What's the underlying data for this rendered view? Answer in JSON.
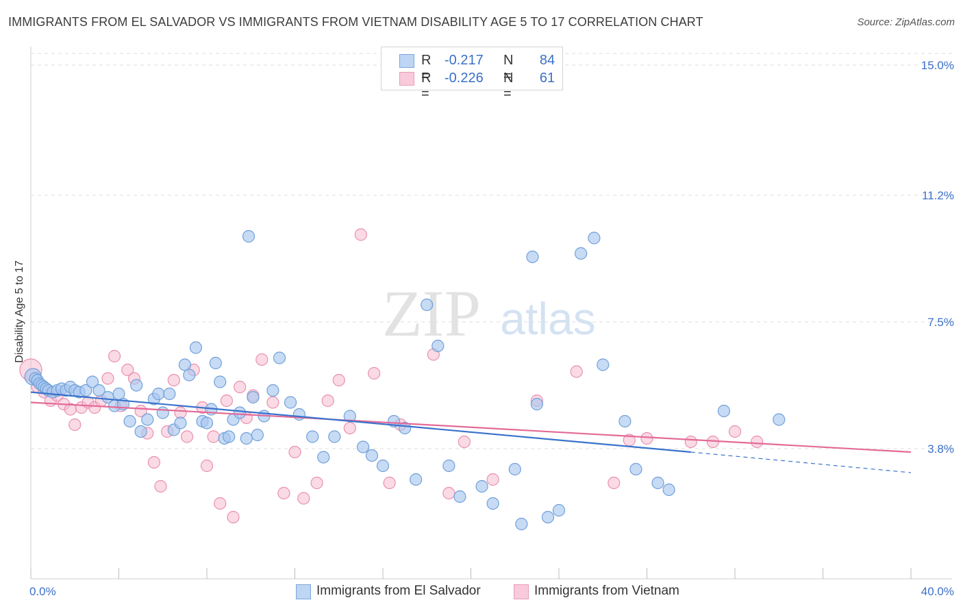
{
  "header": {
    "title": "IMMIGRANTS FROM EL SALVADOR VS IMMIGRANTS FROM VIETNAM DISABILITY AGE 5 TO 17 CORRELATION CHART",
    "source": "Source: ZipAtlas.com"
  },
  "legend": {
    "r_label": "R =",
    "n_label": "N =",
    "series": [
      {
        "name": "Immigrants from El Salvador",
        "r": "-0.217",
        "n": "84"
      },
      {
        "name": "Immigrants from Vietnam",
        "r": "-0.226",
        "n": "61"
      }
    ]
  },
  "colors": {
    "salvador_fill": "#a9c8ef",
    "salvador_stroke": "#6f9fd8",
    "salvador_line": "#3a72cc",
    "vietnam_fill": "#f6bcd0",
    "vietnam_stroke": "#e98fae",
    "vietnam_line": "#e36a97",
    "tick_label": "#3a6fc9",
    "grid": "#dcdcdc"
  },
  "chart_data": {
    "type": "scatter",
    "title": "IMMIGRANTS FROM EL SALVADOR VS IMMIGRANTS FROM VIETNAM DISABILITY AGE 5 TO 17 CORRELATION CHART",
    "xlabel": "",
    "ylabel": "Disability Age 5 to 17",
    "xlim": [
      0,
      40
    ],
    "ylim": [
      0.0,
      15.5
    ],
    "x_tick_labels": [
      "0.0%",
      "40.0%"
    ],
    "y_ticks": [
      3.8,
      7.5,
      11.2,
      15.0
    ],
    "y_tick_labels": [
      "3.8%",
      "7.5%",
      "11.2%",
      "15.0%"
    ],
    "watermark": "ZIPatlas",
    "series": [
      {
        "name": "Immigrants from El Salvador",
        "trend": {
          "x0": 0.0,
          "y0": 5.45,
          "x1": 30.0,
          "y1": 3.7,
          "dash_x1": 40.0,
          "dash_y1": 3.1
        },
        "points": [
          [
            0.1,
            5.9
          ],
          [
            0.2,
            5.85
          ],
          [
            0.3,
            5.8
          ],
          [
            0.4,
            5.7
          ],
          [
            0.5,
            5.65
          ],
          [
            0.6,
            5.6
          ],
          [
            0.7,
            5.55
          ],
          [
            0.8,
            5.5
          ],
          [
            1.0,
            5.45
          ],
          [
            1.2,
            5.5
          ],
          [
            1.4,
            5.55
          ],
          [
            1.6,
            5.5
          ],
          [
            1.8,
            5.6
          ],
          [
            2.0,
            5.5
          ],
          [
            2.2,
            5.45
          ],
          [
            2.5,
            5.5
          ],
          [
            2.8,
            5.75
          ],
          [
            3.1,
            5.5
          ],
          [
            3.5,
            5.3
          ],
          [
            3.8,
            5.05
          ],
          [
            4.0,
            5.4
          ],
          [
            4.2,
            5.1
          ],
          [
            4.5,
            4.6
          ],
          [
            4.8,
            5.65
          ],
          [
            5.0,
            4.3
          ],
          [
            5.3,
            4.65
          ],
          [
            5.6,
            5.25
          ],
          [
            5.8,
            5.4
          ],
          [
            6.0,
            4.85
          ],
          [
            6.3,
            5.4
          ],
          [
            6.5,
            4.35
          ],
          [
            6.8,
            4.55
          ],
          [
            7.0,
            6.25
          ],
          [
            7.2,
            5.95
          ],
          [
            7.5,
            6.75
          ],
          [
            7.8,
            4.6
          ],
          [
            8.0,
            4.55
          ],
          [
            8.2,
            4.95
          ],
          [
            8.4,
            6.3
          ],
          [
            8.6,
            5.75
          ],
          [
            8.8,
            4.1
          ],
          [
            9.0,
            4.15
          ],
          [
            9.2,
            4.65
          ],
          [
            9.5,
            4.85
          ],
          [
            9.8,
            4.1
          ],
          [
            10.1,
            5.3
          ],
          [
            10.3,
            4.2
          ],
          [
            10.6,
            4.75
          ],
          [
            9.9,
            10.0
          ],
          [
            11.0,
            5.5
          ],
          [
            11.3,
            6.45
          ],
          [
            11.8,
            5.15
          ],
          [
            12.2,
            4.8
          ],
          [
            12.8,
            4.15
          ],
          [
            13.3,
            3.55
          ],
          [
            13.8,
            4.15
          ],
          [
            14.5,
            4.75
          ],
          [
            15.1,
            3.85
          ],
          [
            15.5,
            3.6
          ],
          [
            16.0,
            3.3
          ],
          [
            16.5,
            4.6
          ],
          [
            17.0,
            4.4
          ],
          [
            17.5,
            2.9
          ],
          [
            18.0,
            8.0
          ],
          [
            18.5,
            6.8
          ],
          [
            19.0,
            3.3
          ],
          [
            19.5,
            2.4
          ],
          [
            20.5,
            2.7
          ],
          [
            21.0,
            2.2
          ],
          [
            22.0,
            3.2
          ],
          [
            22.8,
            9.4
          ],
          [
            22.3,
            1.6
          ],
          [
            23.0,
            5.1
          ],
          [
            23.5,
            1.8
          ],
          [
            24.0,
            2.0
          ],
          [
            25.0,
            9.5
          ],
          [
            25.6,
            9.95
          ],
          [
            26.0,
            6.25
          ],
          [
            27.0,
            4.6
          ],
          [
            27.5,
            3.2
          ],
          [
            28.5,
            2.8
          ],
          [
            29.0,
            2.6
          ],
          [
            31.5,
            4.9
          ],
          [
            34.0,
            4.65
          ]
        ]
      },
      {
        "name": "Immigrants from Vietnam",
        "trend": {
          "x0": 0.0,
          "y0": 5.15,
          "x1": 40.0,
          "y1": 3.7
        },
        "points": [
          [
            0.0,
            6.1
          ],
          [
            0.3,
            5.6
          ],
          [
            0.6,
            5.45
          ],
          [
            0.9,
            5.2
          ],
          [
            1.2,
            5.35
          ],
          [
            1.5,
            5.1
          ],
          [
            1.8,
            4.95
          ],
          [
            2.0,
            4.5
          ],
          [
            2.3,
            5.0
          ],
          [
            2.6,
            5.15
          ],
          [
            2.9,
            5.0
          ],
          [
            3.2,
            5.2
          ],
          [
            3.5,
            5.85
          ],
          [
            3.8,
            6.5
          ],
          [
            4.1,
            5.05
          ],
          [
            4.4,
            6.1
          ],
          [
            4.7,
            5.85
          ],
          [
            5.0,
            4.9
          ],
          [
            5.3,
            4.25
          ],
          [
            5.6,
            3.4
          ],
          [
            5.9,
            2.7
          ],
          [
            6.2,
            4.3
          ],
          [
            6.5,
            5.8
          ],
          [
            6.8,
            4.85
          ],
          [
            7.1,
            4.15
          ],
          [
            7.4,
            6.1
          ],
          [
            7.8,
            5.0
          ],
          [
            8.0,
            3.3
          ],
          [
            8.3,
            4.15
          ],
          [
            8.6,
            2.2
          ],
          [
            8.9,
            5.2
          ],
          [
            9.2,
            1.8
          ],
          [
            9.5,
            5.6
          ],
          [
            9.8,
            4.7
          ],
          [
            10.1,
            5.35
          ],
          [
            10.5,
            6.4
          ],
          [
            11.0,
            5.15
          ],
          [
            11.5,
            2.5
          ],
          [
            12.0,
            3.7
          ],
          [
            12.4,
            2.35
          ],
          [
            13.0,
            2.8
          ],
          [
            13.5,
            5.2
          ],
          [
            14.0,
            5.8
          ],
          [
            14.5,
            4.4
          ],
          [
            15.0,
            10.05
          ],
          [
            15.6,
            6.0
          ],
          [
            16.3,
            2.8
          ],
          [
            16.8,
            4.5
          ],
          [
            18.3,
            6.55
          ],
          [
            19.0,
            2.5
          ],
          [
            19.7,
            4.0
          ],
          [
            21.0,
            2.9
          ],
          [
            23.0,
            5.2
          ],
          [
            24.8,
            6.05
          ],
          [
            26.5,
            2.8
          ],
          [
            27.2,
            4.05
          ],
          [
            28.0,
            4.1
          ],
          [
            30.0,
            4.0
          ],
          [
            31.0,
            4.0
          ],
          [
            32.0,
            4.3
          ],
          [
            33.0,
            4.0
          ]
        ]
      }
    ]
  }
}
